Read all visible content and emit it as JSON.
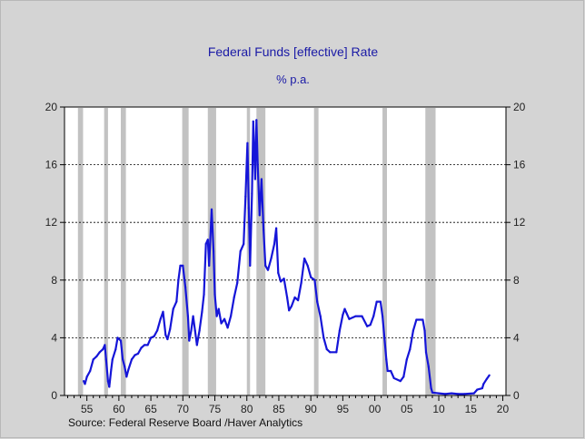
{
  "chart_data": {
    "type": "line",
    "title": "Federal Funds [effective] Rate",
    "subtitle": "% p.a.",
    "source": "Source:  Federal Reserve Board /Haver Analytics",
    "xlim": [
      1951.5,
      2020.5
    ],
    "ylim": [
      0,
      20
    ],
    "y_ticks": [
      0,
      4,
      8,
      12,
      16,
      20
    ],
    "x_tick_labels": [
      {
        "x": 1955,
        "label": "55"
      },
      {
        "x": 1960,
        "label": "60"
      },
      {
        "x": 1965,
        "label": "65"
      },
      {
        "x": 1970,
        "label": "70"
      },
      {
        "x": 1975,
        "label": "75"
      },
      {
        "x": 1980,
        "label": "80"
      },
      {
        "x": 1985,
        "label": "85"
      },
      {
        "x": 1990,
        "label": "90"
      },
      {
        "x": 1995,
        "label": "95"
      },
      {
        "x": 2000,
        "label": "00"
      },
      {
        "x": 2005,
        "label": "05"
      },
      {
        "x": 2010,
        "label": "10"
      },
      {
        "x": 2015,
        "label": "15"
      },
      {
        "x": 2020,
        "label": "20"
      }
    ],
    "grid": "horizontal dotted",
    "line_color": "#1515d8",
    "recession_color": "#c2c2c2",
    "recessions": [
      [
        1953.6,
        1954.4
      ],
      [
        1957.7,
        1958.3
      ],
      [
        1960.3,
        1961.1
      ],
      [
        1969.9,
        1970.9
      ],
      [
        1973.9,
        1975.2
      ],
      [
        1980.0,
        1980.5
      ],
      [
        1981.5,
        1982.9
      ],
      [
        1990.5,
        1991.2
      ],
      [
        2001.2,
        2001.9
      ],
      [
        2007.9,
        2009.5
      ]
    ],
    "series": [
      {
        "values": [
          [
            1954.5,
            1.0
          ],
          [
            1954.7,
            0.8
          ],
          [
            1955.0,
            1.3
          ],
          [
            1955.5,
            1.7
          ],
          [
            1956.0,
            2.5
          ],
          [
            1956.5,
            2.7
          ],
          [
            1957.0,
            3.0
          ],
          [
            1957.5,
            3.2
          ],
          [
            1957.8,
            3.5
          ],
          [
            1958.0,
            2.5
          ],
          [
            1958.3,
            1.0
          ],
          [
            1958.5,
            0.6
          ],
          [
            1958.8,
            1.8
          ],
          [
            1959.0,
            2.5
          ],
          [
            1959.5,
            3.2
          ],
          [
            1959.8,
            4.0
          ],
          [
            1960.3,
            3.8
          ],
          [
            1960.6,
            2.5
          ],
          [
            1960.9,
            2.0
          ],
          [
            1961.2,
            1.3
          ],
          [
            1961.5,
            1.8
          ],
          [
            1962.0,
            2.5
          ],
          [
            1962.5,
            2.8
          ],
          [
            1963.0,
            2.9
          ],
          [
            1963.5,
            3.3
          ],
          [
            1964.0,
            3.5
          ],
          [
            1964.5,
            3.5
          ],
          [
            1965.0,
            4.0
          ],
          [
            1965.5,
            4.1
          ],
          [
            1966.0,
            4.5
          ],
          [
            1966.5,
            5.3
          ],
          [
            1966.9,
            5.8
          ],
          [
            1967.3,
            4.2
          ],
          [
            1967.6,
            3.9
          ],
          [
            1968.0,
            4.6
          ],
          [
            1968.5,
            6.0
          ],
          [
            1969.0,
            6.5
          ],
          [
            1969.3,
            8.0
          ],
          [
            1969.6,
            9.0
          ],
          [
            1970.0,
            9.0
          ],
          [
            1970.4,
            7.5
          ],
          [
            1970.8,
            5.5
          ],
          [
            1971.0,
            3.8
          ],
          [
            1971.3,
            4.5
          ],
          [
            1971.6,
            5.5
          ],
          [
            1971.9,
            4.5
          ],
          [
            1972.2,
            3.5
          ],
          [
            1972.6,
            4.5
          ],
          [
            1973.0,
            5.8
          ],
          [
            1973.3,
            7.0
          ],
          [
            1973.6,
            10.5
          ],
          [
            1973.9,
            10.8
          ],
          [
            1974.1,
            9.0
          ],
          [
            1974.5,
            12.9
          ],
          [
            1974.8,
            10.0
          ],
          [
            1975.0,
            7.0
          ],
          [
            1975.3,
            5.5
          ],
          [
            1975.6,
            6.0
          ],
          [
            1976.0,
            5.0
          ],
          [
            1976.5,
            5.3
          ],
          [
            1977.0,
            4.7
          ],
          [
            1977.5,
            5.5
          ],
          [
            1978.0,
            6.8
          ],
          [
            1978.5,
            7.8
          ],
          [
            1979.0,
            10.0
          ],
          [
            1979.5,
            10.5
          ],
          [
            1979.8,
            13.8
          ],
          [
            1980.1,
            17.5
          ],
          [
            1980.3,
            13.0
          ],
          [
            1980.5,
            9.0
          ],
          [
            1980.8,
            14.0
          ],
          [
            1981.0,
            19.0
          ],
          [
            1981.3,
            15.0
          ],
          [
            1981.5,
            19.1
          ],
          [
            1981.7,
            16.0
          ],
          [
            1982.0,
            12.5
          ],
          [
            1982.3,
            15.0
          ],
          [
            1982.6,
            11.5
          ],
          [
            1982.9,
            9.0
          ],
          [
            1983.3,
            8.7
          ],
          [
            1983.8,
            9.5
          ],
          [
            1984.3,
            10.5
          ],
          [
            1984.6,
            11.6
          ],
          [
            1984.9,
            8.5
          ],
          [
            1985.3,
            7.9
          ],
          [
            1985.8,
            8.1
          ],
          [
            1986.3,
            6.8
          ],
          [
            1986.6,
            5.9
          ],
          [
            1987.0,
            6.2
          ],
          [
            1987.5,
            6.8
          ],
          [
            1988.0,
            6.6
          ],
          [
            1988.5,
            7.8
          ],
          [
            1989.0,
            9.5
          ],
          [
            1989.5,
            9.0
          ],
          [
            1990.0,
            8.2
          ],
          [
            1990.6,
            8.0
          ],
          [
            1991.0,
            6.5
          ],
          [
            1991.5,
            5.5
          ],
          [
            1992.0,
            4.0
          ],
          [
            1992.5,
            3.2
          ],
          [
            1993.0,
            3.0
          ],
          [
            1994.0,
            3.0
          ],
          [
            1994.5,
            4.5
          ],
          [
            1995.0,
            5.6
          ],
          [
            1995.3,
            6.0
          ],
          [
            1995.6,
            5.7
          ],
          [
            1996.0,
            5.3
          ],
          [
            1997.0,
            5.5
          ],
          [
            1998.0,
            5.5
          ],
          [
            1998.8,
            4.8
          ],
          [
            1999.3,
            4.9
          ],
          [
            1999.8,
            5.5
          ],
          [
            2000.3,
            6.5
          ],
          [
            2000.9,
            6.5
          ],
          [
            2001.2,
            5.5
          ],
          [
            2001.5,
            4.0
          ],
          [
            2001.8,
            2.5
          ],
          [
            2002.0,
            1.7
          ],
          [
            2002.5,
            1.7
          ],
          [
            2003.0,
            1.2
          ],
          [
            2004.0,
            1.0
          ],
          [
            2004.5,
            1.3
          ],
          [
            2005.0,
            2.5
          ],
          [
            2005.5,
            3.2
          ],
          [
            2006.0,
            4.5
          ],
          [
            2006.5,
            5.25
          ],
          [
            2007.5,
            5.25
          ],
          [
            2007.8,
            4.5
          ],
          [
            2008.0,
            3.0
          ],
          [
            2008.4,
            2.0
          ],
          [
            2008.8,
            0.5
          ],
          [
            2009.0,
            0.2
          ],
          [
            2010.0,
            0.15
          ],
          [
            2011.0,
            0.1
          ],
          [
            2012.0,
            0.15
          ],
          [
            2013.0,
            0.1
          ],
          [
            2014.0,
            0.1
          ],
          [
            2015.5,
            0.15
          ],
          [
            2016.0,
            0.4
          ],
          [
            2016.8,
            0.5
          ],
          [
            2017.0,
            0.8
          ],
          [
            2017.5,
            1.15
          ],
          [
            2017.9,
            1.4
          ]
        ]
      }
    ]
  }
}
